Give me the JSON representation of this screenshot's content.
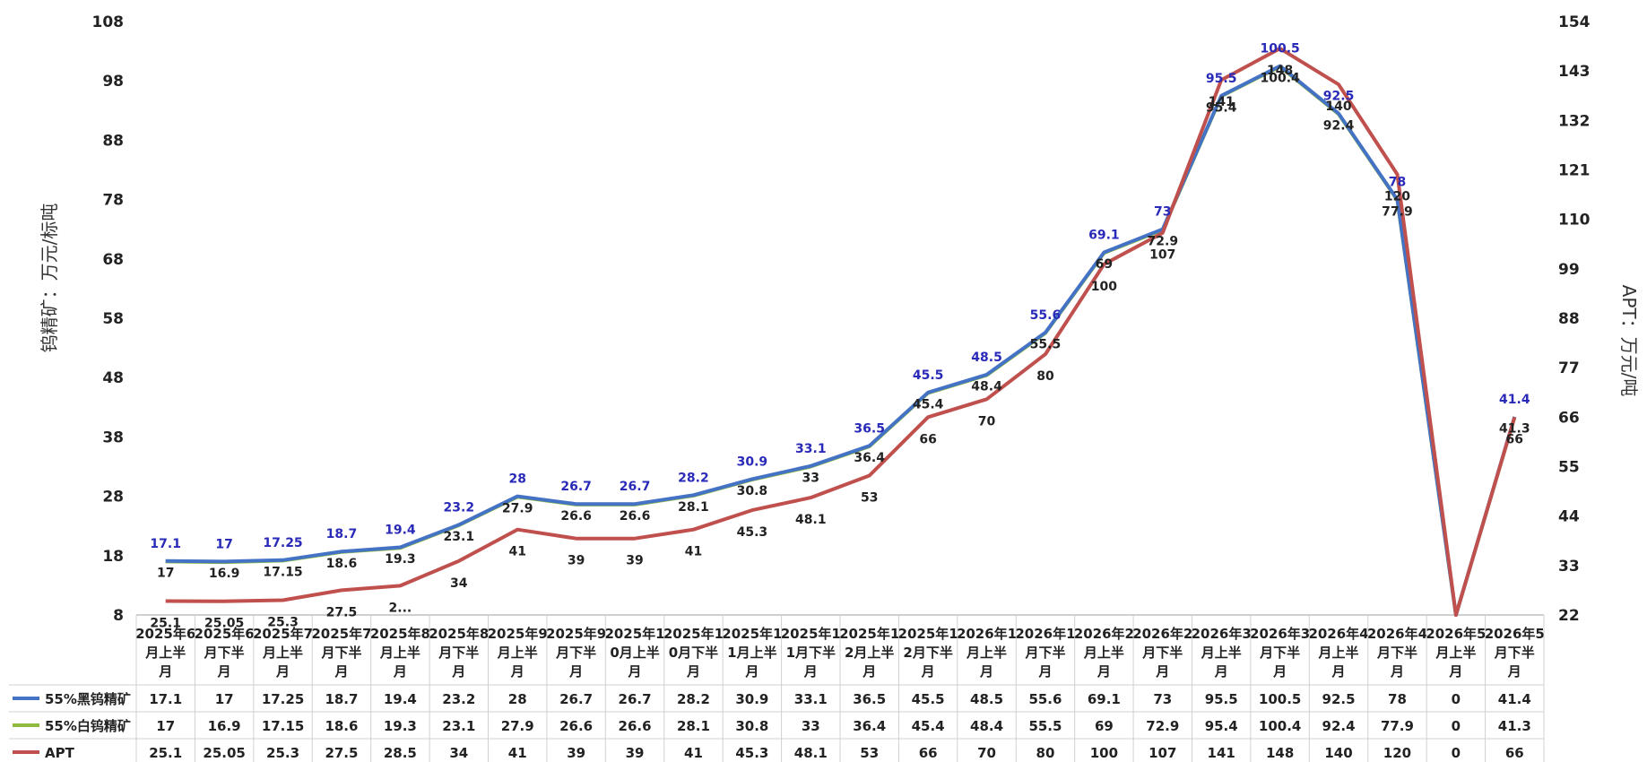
{
  "chart_data": {
    "type": "line",
    "ylabel_left": "钨精矿：万元/标吨",
    "ylabel_right": "APT：万元/吨",
    "ylim_left": [
      8,
      108
    ],
    "yticks_left": [
      8,
      18,
      28,
      38,
      48,
      58,
      68,
      78,
      88,
      98,
      108
    ],
    "ylim_right": [
      22,
      154
    ],
    "yticks_right": [
      22,
      33,
      44,
      55,
      66,
      77,
      88,
      99,
      110,
      121,
      132,
      143,
      154
    ],
    "categories": [
      [
        "2025年6",
        "月上半",
        "月"
      ],
      [
        "2025年6",
        "月下半",
        "月"
      ],
      [
        "2025年7",
        "月上半",
        "月"
      ],
      [
        "2025年7",
        "月下半",
        "月"
      ],
      [
        "2025年8",
        "月上半",
        "月"
      ],
      [
        "2025年8",
        "月下半",
        "月"
      ],
      [
        "2025年9",
        "月上半",
        "月"
      ],
      [
        "2025年9",
        "月下半",
        "月"
      ],
      [
        "2025年1",
        "0月上半",
        "月"
      ],
      [
        "2025年1",
        "0月下半",
        "月"
      ],
      [
        "2025年1",
        "1月上半",
        "月"
      ],
      [
        "2025年1",
        "1月下半",
        "月"
      ],
      [
        "2025年1",
        "2月上半",
        "月"
      ],
      [
        "2025年1",
        "2月下半",
        "月"
      ],
      [
        "2026年1",
        "月上半",
        "月"
      ],
      [
        "2026年1",
        "月下半",
        "月"
      ],
      [
        "2026年2",
        "月上半",
        "月"
      ],
      [
        "2026年2",
        "月下半",
        "月"
      ],
      [
        "2026年3",
        "月上半",
        "月"
      ],
      [
        "2026年3",
        "月下半",
        "月"
      ],
      [
        "2026年4",
        "月上半",
        "月"
      ],
      [
        "2026年4",
        "月下半",
        "月"
      ],
      [
        "2026年5",
        "月上半",
        "月"
      ],
      [
        "2026年5",
        "月下半",
        "月"
      ]
    ],
    "series": [
      {
        "name": "55%黑钨精矿",
        "axis": "left",
        "color": "#4472c4",
        "values": [
          17.1,
          17,
          17.25,
          18.7,
          19.4,
          23.2,
          28,
          26.7,
          26.7,
          28.2,
          30.9,
          33.1,
          36.5,
          45.5,
          48.5,
          55.6,
          69.1,
          73,
          95.5,
          100.5,
          92.5,
          78,
          0,
          41.4
        ],
        "labels": [
          "17.1",
          "17",
          "17.25",
          "18.7",
          "19.4",
          "23.2",
          "28",
          "26.7",
          "26.7",
          "28.2",
          "30.9",
          "33.1",
          "36.5",
          "45.5",
          "48.5",
          "55.6",
          "69.1",
          "73",
          "95.5",
          "100.5",
          "92.5",
          "78",
          "",
          "41.4"
        ]
      },
      {
        "name": "55%白钨精矿",
        "axis": "left",
        "color": "#8fbc3f",
        "values": [
          17,
          16.9,
          17.15,
          18.6,
          19.3,
          23.1,
          27.9,
          26.6,
          26.6,
          28.1,
          30.8,
          33,
          36.4,
          45.4,
          48.4,
          55.5,
          69,
          72.9,
          95.4,
          100.4,
          92.4,
          77.9,
          0,
          41.3
        ],
        "labels": [
          "17",
          "16.9",
          "17.15",
          "18.6",
          "19.3",
          "23.1",
          "27.9",
          "26.6",
          "26.6",
          "28.1",
          "30.8",
          "33",
          "36.4",
          "45.4",
          "48.4",
          "55.5",
          "69",
          "72.9",
          "95.4",
          "100.4",
          "92.4",
          "77.9",
          "",
          "41.3"
        ]
      },
      {
        "name": "APT",
        "axis": "right",
        "color": "#c0504d",
        "values": [
          25.1,
          25.05,
          25.3,
          27.5,
          28.5,
          34,
          41,
          39,
          39,
          41,
          45.3,
          48.1,
          53,
          66,
          70,
          80,
          100,
          107,
          141,
          148,
          140,
          120,
          0,
          66
        ],
        "labels": [
          "25.1",
          "25.05",
          "25.3",
          "27.5",
          "2...",
          "34",
          "41",
          "39",
          "39",
          "41",
          "45.3",
          "48.1",
          "53",
          "66",
          "70",
          "80",
          "100",
          "107",
          "141",
          "148",
          "140",
          "120",
          "",
          "66"
        ]
      }
    ],
    "table": {
      "rows": [
        {
          "name": "55%黑钨精矿",
          "values": [
            "17.1",
            "17",
            "17.25",
            "18.7",
            "19.4",
            "23.2",
            "28",
            "26.7",
            "26.7",
            "28.2",
            "30.9",
            "33.1",
            "36.5",
            "45.5",
            "48.5",
            "55.6",
            "69.1",
            "73",
            "95.5",
            "100.5",
            "92.5",
            "78",
            "0",
            "41.4"
          ]
        },
        {
          "name": "55%白钨精矿",
          "values": [
            "17",
            "16.9",
            "17.15",
            "18.6",
            "19.3",
            "23.1",
            "27.9",
            "26.6",
            "26.6",
            "28.1",
            "30.8",
            "33",
            "36.4",
            "45.4",
            "48.4",
            "55.5",
            "69",
            "72.9",
            "95.4",
            "100.4",
            "92.4",
            "77.9",
            "0",
            "41.3"
          ]
        },
        {
          "name": "APT",
          "values": [
            "25.1",
            "25.05",
            "25.3",
            "27.5",
            "28.5",
            "34",
            "41",
            "39",
            "39",
            "41",
            "45.3",
            "48.1",
            "53",
            "66",
            "70",
            "80",
            "100",
            "107",
            "141",
            "148",
            "140",
            "120",
            "0",
            "66"
          ]
        }
      ]
    },
    "grid": false,
    "legend": "table-left"
  }
}
